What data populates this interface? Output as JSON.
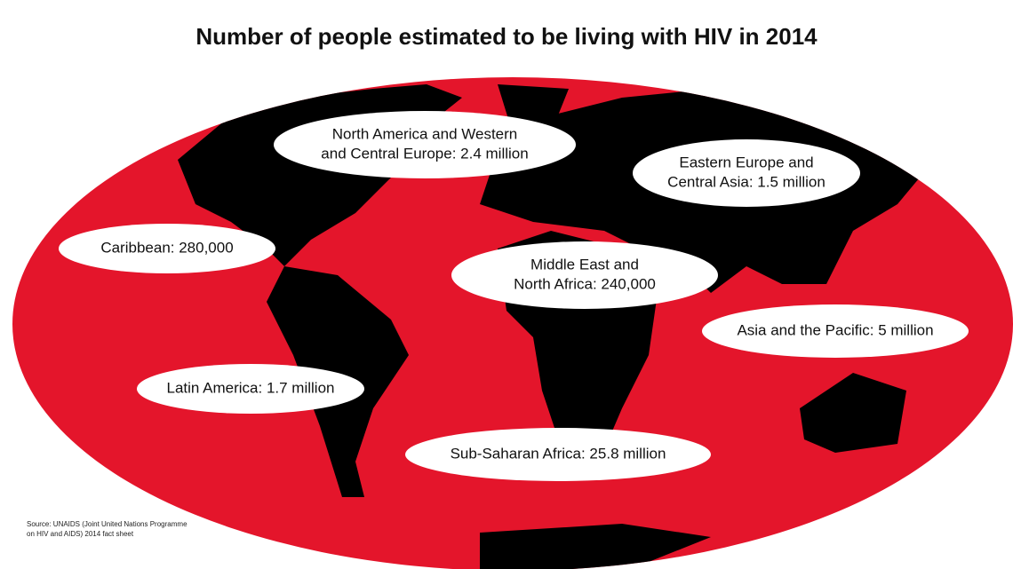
{
  "title": "Number of people estimated to be living with HIV in 2014",
  "regions": [
    {
      "lines": [
        "North America and Western",
        "and Central Europe: 2.4 million"
      ]
    },
    {
      "lines": [
        "Eastern Europe and",
        "Central Asia: 1.5 million"
      ]
    },
    {
      "lines": [
        "Caribbean: 280,000"
      ]
    },
    {
      "lines": [
        "Middle East and",
        "North Africa: 240,000"
      ]
    },
    {
      "lines": [
        "Asia and the Pacific: 5 million"
      ]
    },
    {
      "lines": [
        "Latin America: 1.7 million"
      ]
    },
    {
      "lines": [
        "Sub-Saharan Africa: 25.8 million"
      ]
    }
  ],
  "source": {
    "lines": [
      "Source: UNAIDS (Joint United Nations Programme",
      "on HIV and AIDS) 2014 fact sheet"
    ]
  }
}
